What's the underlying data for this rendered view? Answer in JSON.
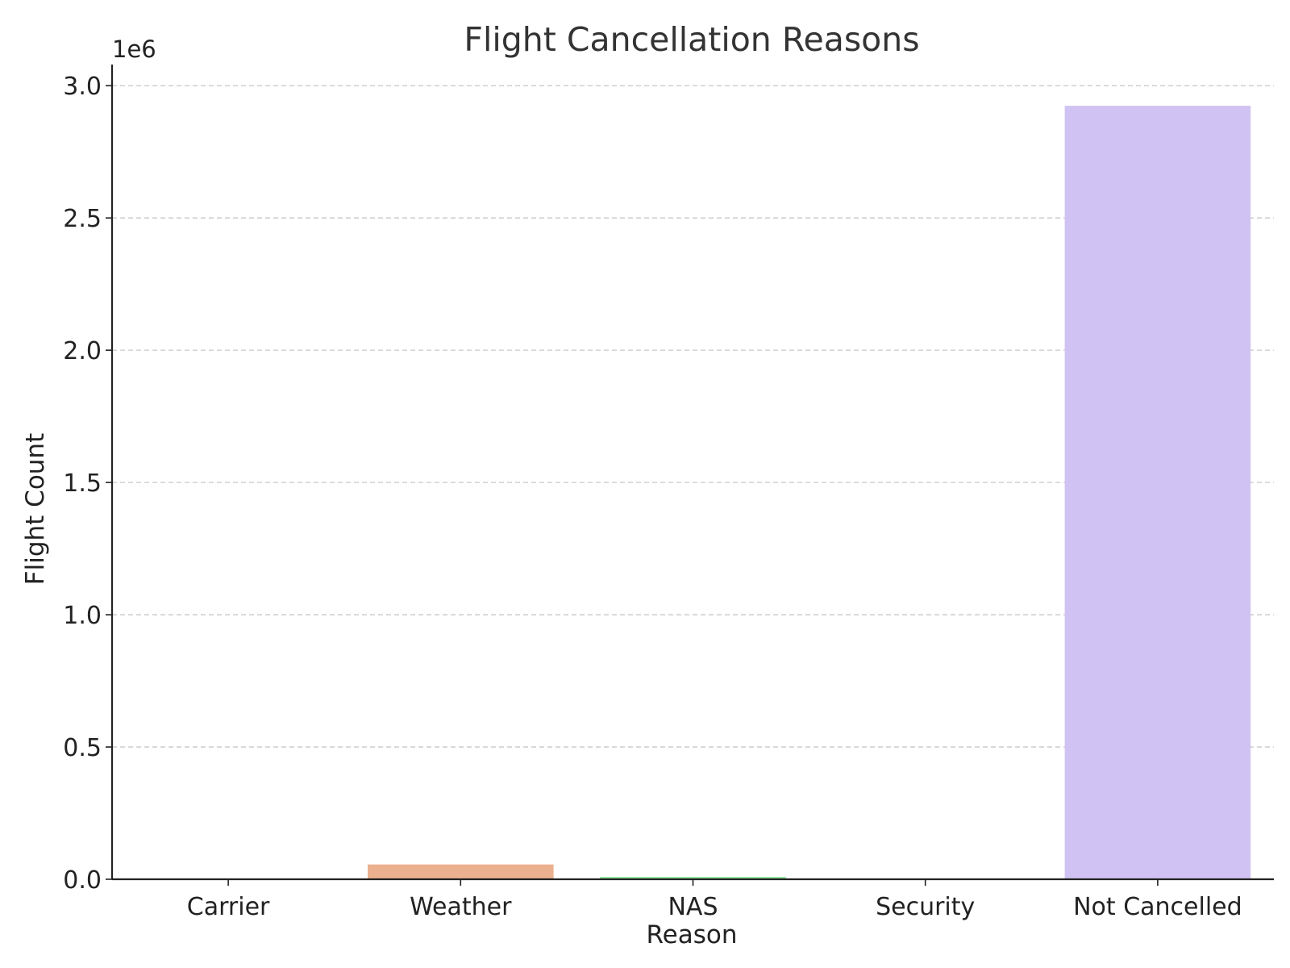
{
  "chart_data": {
    "type": "bar",
    "title": "Flight Cancellation Reasons",
    "xlabel": "Reason",
    "ylabel": "Flight Count",
    "y_offset_label": "1e6",
    "categories": [
      "Carrier",
      "Weather",
      "NAS",
      "Security",
      "Not Cancelled"
    ],
    "values": [
      0,
      56000,
      9000,
      0,
      2924000
    ],
    "colors": [
      "#a1c9f4",
      "#ebb08d",
      "#8de5a1",
      "#ff9f9b",
      "#d0c3f3"
    ],
    "ylim": [
      0,
      3080000
    ],
    "yticks": [
      0,
      500000,
      1000000,
      1500000,
      2000000,
      2500000,
      3000000
    ],
    "ytick_labels": [
      "0.0",
      "0.5",
      "1.0",
      "1.5",
      "2.0",
      "2.5",
      "3.0"
    ],
    "grid": "y-dashed",
    "legend": "none"
  }
}
